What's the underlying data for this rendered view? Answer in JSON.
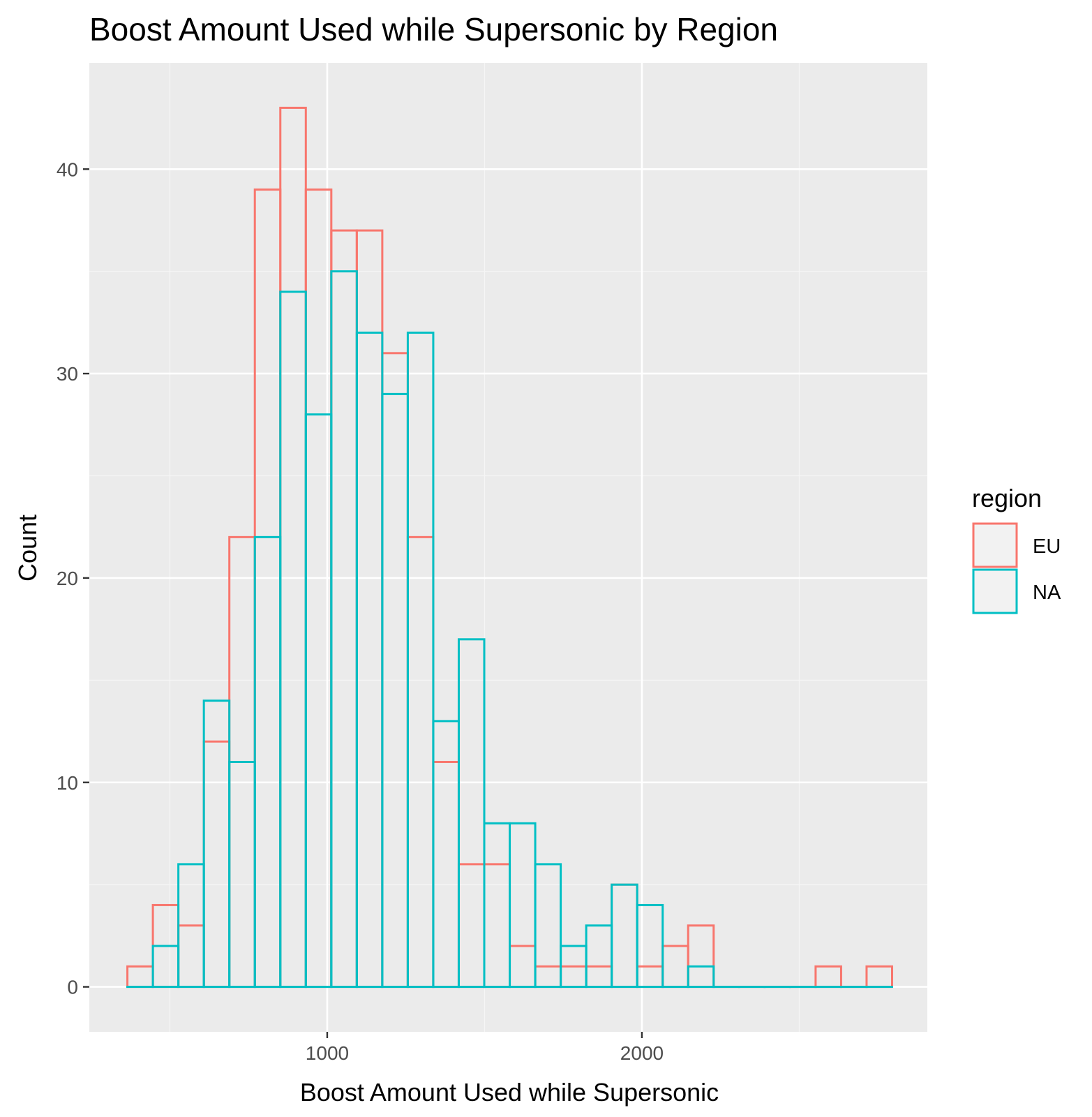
{
  "chart_data": {
    "type": "histogram",
    "title": "Boost Amount Used while Supersonic by Region",
    "xlabel": "Boost Amount Used while Supersonic",
    "ylabel": "Count",
    "xlim": [
      244,
      2907
    ],
    "ylim": [
      -2.2,
      45.2
    ],
    "x_ticks": [
      1000,
      2000
    ],
    "x_tick_labels": [
      "1000",
      "2000"
    ],
    "x_minor_ticks": [
      500,
      1500,
      2500
    ],
    "y_ticks": [
      0,
      10,
      20,
      30,
      40
    ],
    "y_tick_labels": [
      "0",
      "10",
      "20",
      "30",
      "40"
    ],
    "y_minor_ticks": [
      5,
      15,
      25,
      35
    ],
    "grid": true,
    "bins": {
      "first_edge": 365,
      "width": 81,
      "count": 30
    },
    "legend": {
      "title": "region",
      "position": "right"
    },
    "series": [
      {
        "name": "EU",
        "color": "#F8766D",
        "values": [
          1,
          4,
          3,
          12,
          22,
          39,
          43,
          39,
          37,
          37,
          31,
          22,
          11,
          6,
          6,
          2,
          1,
          1,
          1,
          5,
          1,
          2,
          3,
          0,
          0,
          0,
          0,
          1,
          0,
          1
        ]
      },
      {
        "name": "NA",
        "color": "#00BFC4",
        "values": [
          0,
          2,
          6,
          14,
          11,
          22,
          34,
          28,
          35,
          32,
          29,
          32,
          13,
          17,
          8,
          8,
          6,
          2,
          3,
          5,
          4,
          0,
          1,
          0,
          0,
          0,
          0,
          0,
          0,
          0
        ]
      }
    ]
  },
  "colors": {
    "panel_background": "#EBEBEB",
    "grid_major": "#FFFFFF",
    "grid_minor": "#F5F5F5",
    "legend_key_fill": "#F2F2F2"
  }
}
